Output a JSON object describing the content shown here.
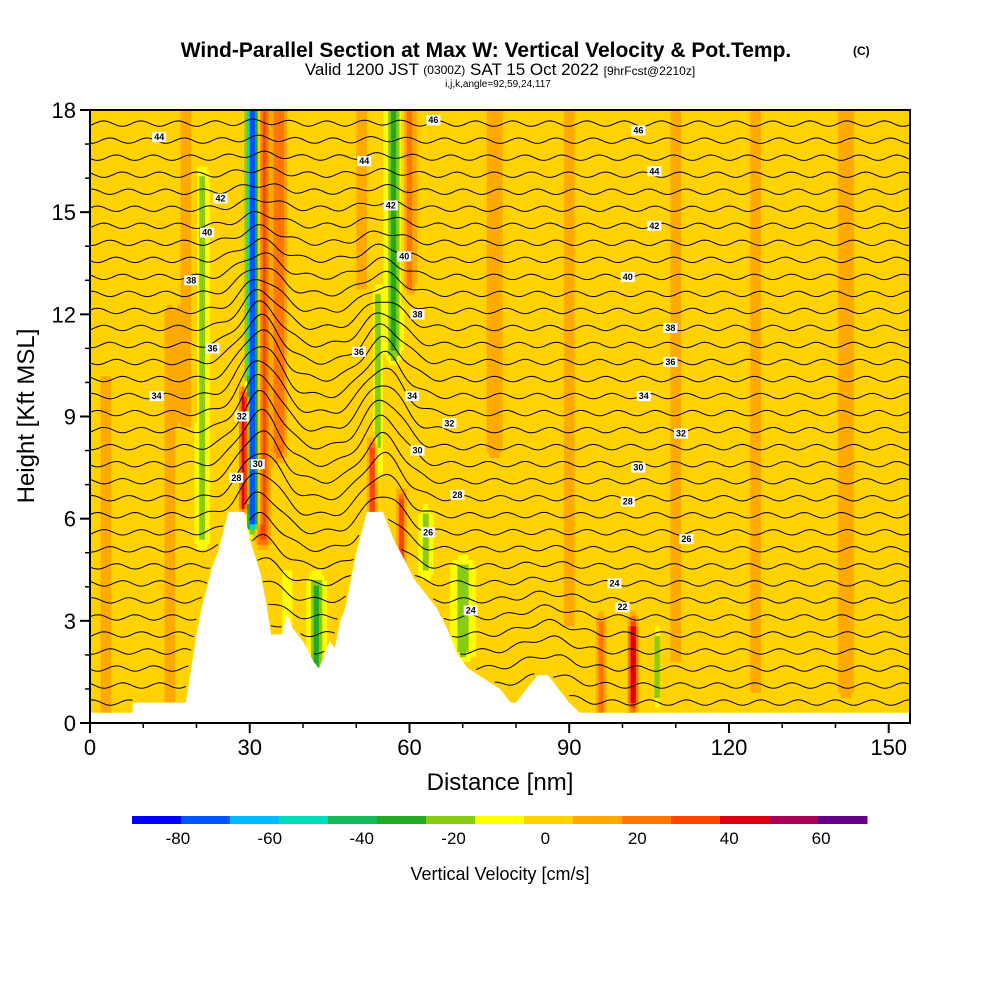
{
  "chart_data": {
    "type": "heatmap",
    "title": "Wind-Parallel Section at Max W: Vertical Velocity & Pot.Temp.",
    "title_mark": "(C)",
    "subtitle_parts": [
      "Valid 1200 JST",
      "(0300Z)",
      "SAT 15 Oct 2022",
      "[9hrFcst@2210z]"
    ],
    "subsubtitle": "i,j,k,angle=92,59,24,117",
    "xlabel": "Distance [nm]",
    "ylabel": "Height [Kft MSL]",
    "xlim": [
      0,
      154
    ],
    "ylim": [
      0,
      18
    ],
    "x_ticks": [
      "0",
      "30",
      "60",
      "90",
      "120",
      "150"
    ],
    "y_ticks": [
      "0",
      "3",
      "6",
      "9",
      "12",
      "15",
      "18"
    ],
    "colorbar": {
      "label": "Vertical Velocity [cm/s]",
      "ticks": [
        "-80",
        "-60",
        "-40",
        "-20",
        "0",
        "20",
        "40",
        "60"
      ],
      "min": -90,
      "max": 70,
      "colors": [
        "#0000ff",
        "#0055ff",
        "#00bbff",
        "#00ddbb",
        "#11bb55",
        "#22aa22",
        "#88cc11",
        "#ffff00",
        "#ffd200",
        "#ffaa00",
        "#ff7700",
        "#ff4400",
        "#dd0011",
        "#aa0055",
        "#660088"
      ]
    },
    "terrain_profile": [
      [
        0,
        0.3
      ],
      [
        8,
        0.3
      ],
      [
        8,
        0.6
      ],
      [
        18,
        0.6
      ],
      [
        19,
        1.6
      ],
      [
        20,
        2.6
      ],
      [
        21,
        3.4
      ],
      [
        22,
        4.0
      ],
      [
        23,
        4.6
      ],
      [
        24,
        5.0
      ],
      [
        25,
        5.6
      ],
      [
        26,
        6.2
      ],
      [
        29,
        6.2
      ],
      [
        30,
        5.4
      ],
      [
        32,
        4.4
      ],
      [
        33,
        3.6
      ],
      [
        34,
        2.6
      ],
      [
        36,
        2.6
      ],
      [
        37,
        3.2
      ],
      [
        38,
        2.8
      ],
      [
        40,
        2.4
      ],
      [
        42,
        1.8
      ],
      [
        43,
        1.6
      ],
      [
        44,
        2.0
      ],
      [
        45,
        2.4
      ],
      [
        46,
        2.2
      ],
      [
        47,
        3.0
      ],
      [
        48,
        3.4
      ],
      [
        49,
        4.2
      ],
      [
        50,
        5.0
      ],
      [
        51,
        5.6
      ],
      [
        52,
        6.2
      ],
      [
        55,
        6.2
      ],
      [
        57,
        5.4
      ],
      [
        59,
        4.8
      ],
      [
        61,
        4.2
      ],
      [
        63,
        3.8
      ],
      [
        65,
        3.4
      ],
      [
        67,
        2.8
      ],
      [
        69,
        2.0
      ],
      [
        71,
        1.6
      ],
      [
        73,
        1.4
      ],
      [
        75,
        1.2
      ],
      [
        77,
        1.0
      ],
      [
        79,
        0.6
      ],
      [
        80,
        0.6
      ],
      [
        82,
        1.0
      ],
      [
        84,
        1.4
      ],
      [
        86,
        1.4
      ],
      [
        88,
        1.0
      ],
      [
        90,
        0.6
      ],
      [
        92,
        0.3
      ],
      [
        154,
        0.3
      ]
    ],
    "w_features": [
      {
        "x": 32.5,
        "y0": 5.5,
        "y1": 18,
        "w": 32,
        "sx": 1.3
      },
      {
        "x": 30.5,
        "y0": 6.0,
        "y1": 18,
        "w": -85,
        "sx": 1.0
      },
      {
        "x": 29,
        "y0": 6.5,
        "y1": 9.5,
        "w": 55,
        "sx": 0.8
      },
      {
        "x": 35.5,
        "y0": 8,
        "y1": 18,
        "w": 25,
        "sx": 1.2
      },
      {
        "x": 21,
        "y0": 5.5,
        "y1": 16,
        "w": -18,
        "sx": 1.2
      },
      {
        "x": 18,
        "y0": 9,
        "y1": 18,
        "w": 15,
        "sx": 1.2
      },
      {
        "x": 53,
        "y0": 6.2,
        "y1": 8,
        "w": 40,
        "sx": 0.8
      },
      {
        "x": 54,
        "y0": 7.5,
        "y1": 12.5,
        "w": -20,
        "sx": 0.8
      },
      {
        "x": 57,
        "y0": 11,
        "y1": 18,
        "w": -30,
        "sx": 1.3
      },
      {
        "x": 60,
        "y0": 13,
        "y1": 18,
        "w": 25,
        "sx": 1.1
      },
      {
        "x": 51,
        "y0": 13,
        "y1": 18,
        "w": 12,
        "sx": 1.2
      },
      {
        "x": 58.5,
        "y0": 4.2,
        "y1": 6.5,
        "w": 38,
        "sx": 0.8
      },
      {
        "x": 63,
        "y0": 4.6,
        "y1": 6.0,
        "w": -20,
        "sx": 1.2
      },
      {
        "x": 70,
        "y0": 2.2,
        "y1": 4.5,
        "w": -20,
        "sx": 2.2
      },
      {
        "x": 42.5,
        "y0": 1.6,
        "y1": 4.0,
        "w": -28,
        "sx": 1.6
      },
      {
        "x": 37,
        "y0": 2.8,
        "y1": 4.2,
        "w": -15,
        "sx": 1.0
      },
      {
        "x": 96,
        "y0": 0.6,
        "y1": 2.8,
        "w": 30,
        "sx": 0.8
      },
      {
        "x": 102,
        "y0": 0.6,
        "y1": 2.8,
        "w": 42,
        "sx": 0.8
      },
      {
        "x": 106.5,
        "y0": 0.8,
        "y1": 2.4,
        "w": -22,
        "sx": 0.5
      },
      {
        "x": 15,
        "y0": 0.5,
        "y1": 12,
        "w": 10,
        "sx": 1.5
      },
      {
        "x": 76,
        "y0": 8,
        "y1": 18,
        "w": 8,
        "sx": 2.5
      },
      {
        "x": 90,
        "y0": 3,
        "y1": 18,
        "w": 7,
        "sx": 3
      },
      {
        "x": 110,
        "y0": 2,
        "y1": 18,
        "w": 8,
        "sx": 2
      },
      {
        "x": 125,
        "y0": 1,
        "y1": 18,
        "w": 7,
        "sx": 2.5
      },
      {
        "x": 142,
        "y0": 1,
        "y1": 18,
        "w": 9,
        "sx": 2
      },
      {
        "x": 3,
        "y0": 0.5,
        "y1": 10,
        "w": 10,
        "sx": 1.5
      }
    ],
    "theta_levels": [
      22,
      24,
      26,
      28,
      30,
      32,
      34,
      36,
      38,
      40,
      42,
      44,
      46
    ],
    "theta_labels": [
      {
        "text": "44",
        "x": 13,
        "y": 17.2
      },
      {
        "text": "42",
        "x": 24.5,
        "y": 15.4
      },
      {
        "text": "40",
        "x": 22,
        "y": 14.4
      },
      {
        "text": "38",
        "x": 19,
        "y": 13.0
      },
      {
        "text": "36",
        "x": 23,
        "y": 11.0
      },
      {
        "text": "34",
        "x": 12.5,
        "y": 9.6
      },
      {
        "text": "32",
        "x": 28.5,
        "y": 9.0
      },
      {
        "text": "30",
        "x": 31.5,
        "y": 7.6
      },
      {
        "text": "28",
        "x": 27.5,
        "y": 7.2
      },
      {
        "text": "46",
        "x": 64.5,
        "y": 17.7
      },
      {
        "text": "44",
        "x": 51.5,
        "y": 16.5
      },
      {
        "text": "42",
        "x": 56.5,
        "y": 15.2
      },
      {
        "text": "40",
        "x": 59,
        "y": 13.7
      },
      {
        "text": "38",
        "x": 61.5,
        "y": 12.0
      },
      {
        "text": "36",
        "x": 50.5,
        "y": 10.9
      },
      {
        "text": "34",
        "x": 60.5,
        "y": 9.6
      },
      {
        "text": "32",
        "x": 67.5,
        "y": 8.8
      },
      {
        "text": "30",
        "x": 61.5,
        "y": 8.0
      },
      {
        "text": "28",
        "x": 69,
        "y": 6.7
      },
      {
        "text": "26",
        "x": 63.5,
        "y": 5.6
      },
      {
        "text": "24",
        "x": 71.5,
        "y": 3.3
      },
      {
        "text": "46",
        "x": 103,
        "y": 17.4
      },
      {
        "text": "44",
        "x": 106,
        "y": 16.2
      },
      {
        "text": "42",
        "x": 106,
        "y": 14.6
      },
      {
        "text": "40",
        "x": 101,
        "y": 13.1
      },
      {
        "text": "38",
        "x": 109,
        "y": 11.6
      },
      {
        "text": "36",
        "x": 109,
        "y": 10.6
      },
      {
        "text": "34",
        "x": 104,
        "y": 9.6
      },
      {
        "text": "32",
        "x": 111,
        "y": 8.5
      },
      {
        "text": "30",
        "x": 103,
        "y": 7.5
      },
      {
        "text": "28",
        "x": 101,
        "y": 6.5
      },
      {
        "text": "26",
        "x": 112,
        "y": 5.4
      },
      {
        "text": "24",
        "x": 98.5,
        "y": 4.1
      },
      {
        "text": "22",
        "x": 100,
        "y": 3.4
      }
    ]
  }
}
